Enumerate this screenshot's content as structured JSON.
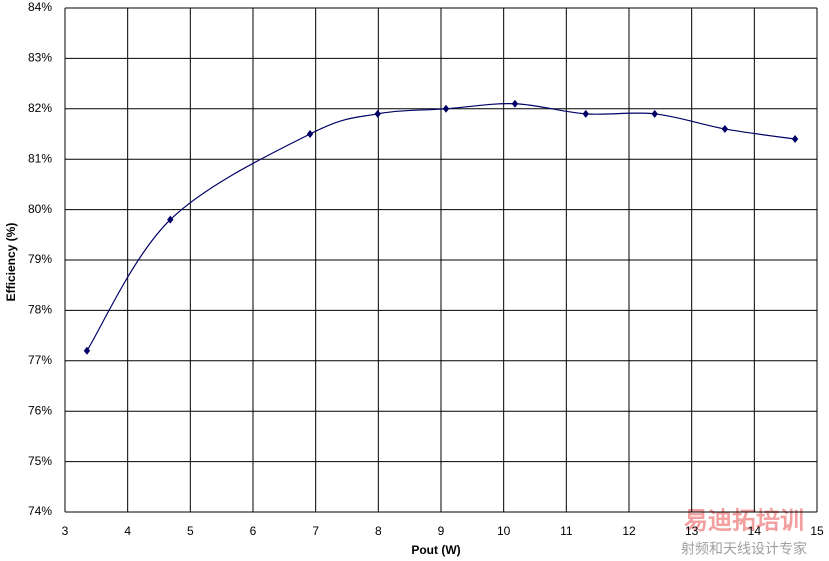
{
  "chart_data": {
    "type": "line",
    "x_label": "Pout (W)",
    "y_label": "Efficiency (%)",
    "x": [
      3.35,
      4.68,
      6.91,
      7.99,
      9.08,
      10.18,
      11.31,
      12.41,
      13.53,
      14.65
    ],
    "series": [
      {
        "name": "Efficiency",
        "color": "#000066",
        "values": [
          77.2,
          79.8,
          81.5,
          81.9,
          82.0,
          82.1,
          81.9,
          81.9,
          81.6,
          81.4
        ]
      }
    ],
    "xlim": [
      3,
      15
    ],
    "xticks": [
      3,
      4,
      5,
      6,
      7,
      8,
      9,
      10,
      11,
      12,
      13,
      14,
      15
    ],
    "ylim": [
      74,
      84
    ],
    "yticks": [
      {
        "value": 74,
        "label": "74%"
      },
      {
        "value": 75,
        "label": "75%"
      },
      {
        "value": 76,
        "label": "76%"
      },
      {
        "value": 77,
        "label": "77%"
      },
      {
        "value": 78,
        "label": "78%"
      },
      {
        "value": 79,
        "label": "79%"
      },
      {
        "value": 80,
        "label": "80%"
      },
      {
        "value": 81,
        "label": "81%"
      },
      {
        "value": 82,
        "label": "82%"
      },
      {
        "value": 83,
        "label": "83%"
      },
      {
        "value": 84,
        "label": "84%"
      }
    ],
    "grid": true,
    "smooth": true,
    "marker": "diamond",
    "watermark": [
      "易迪拓培训",
      "射频和天线设计专家"
    ]
  }
}
